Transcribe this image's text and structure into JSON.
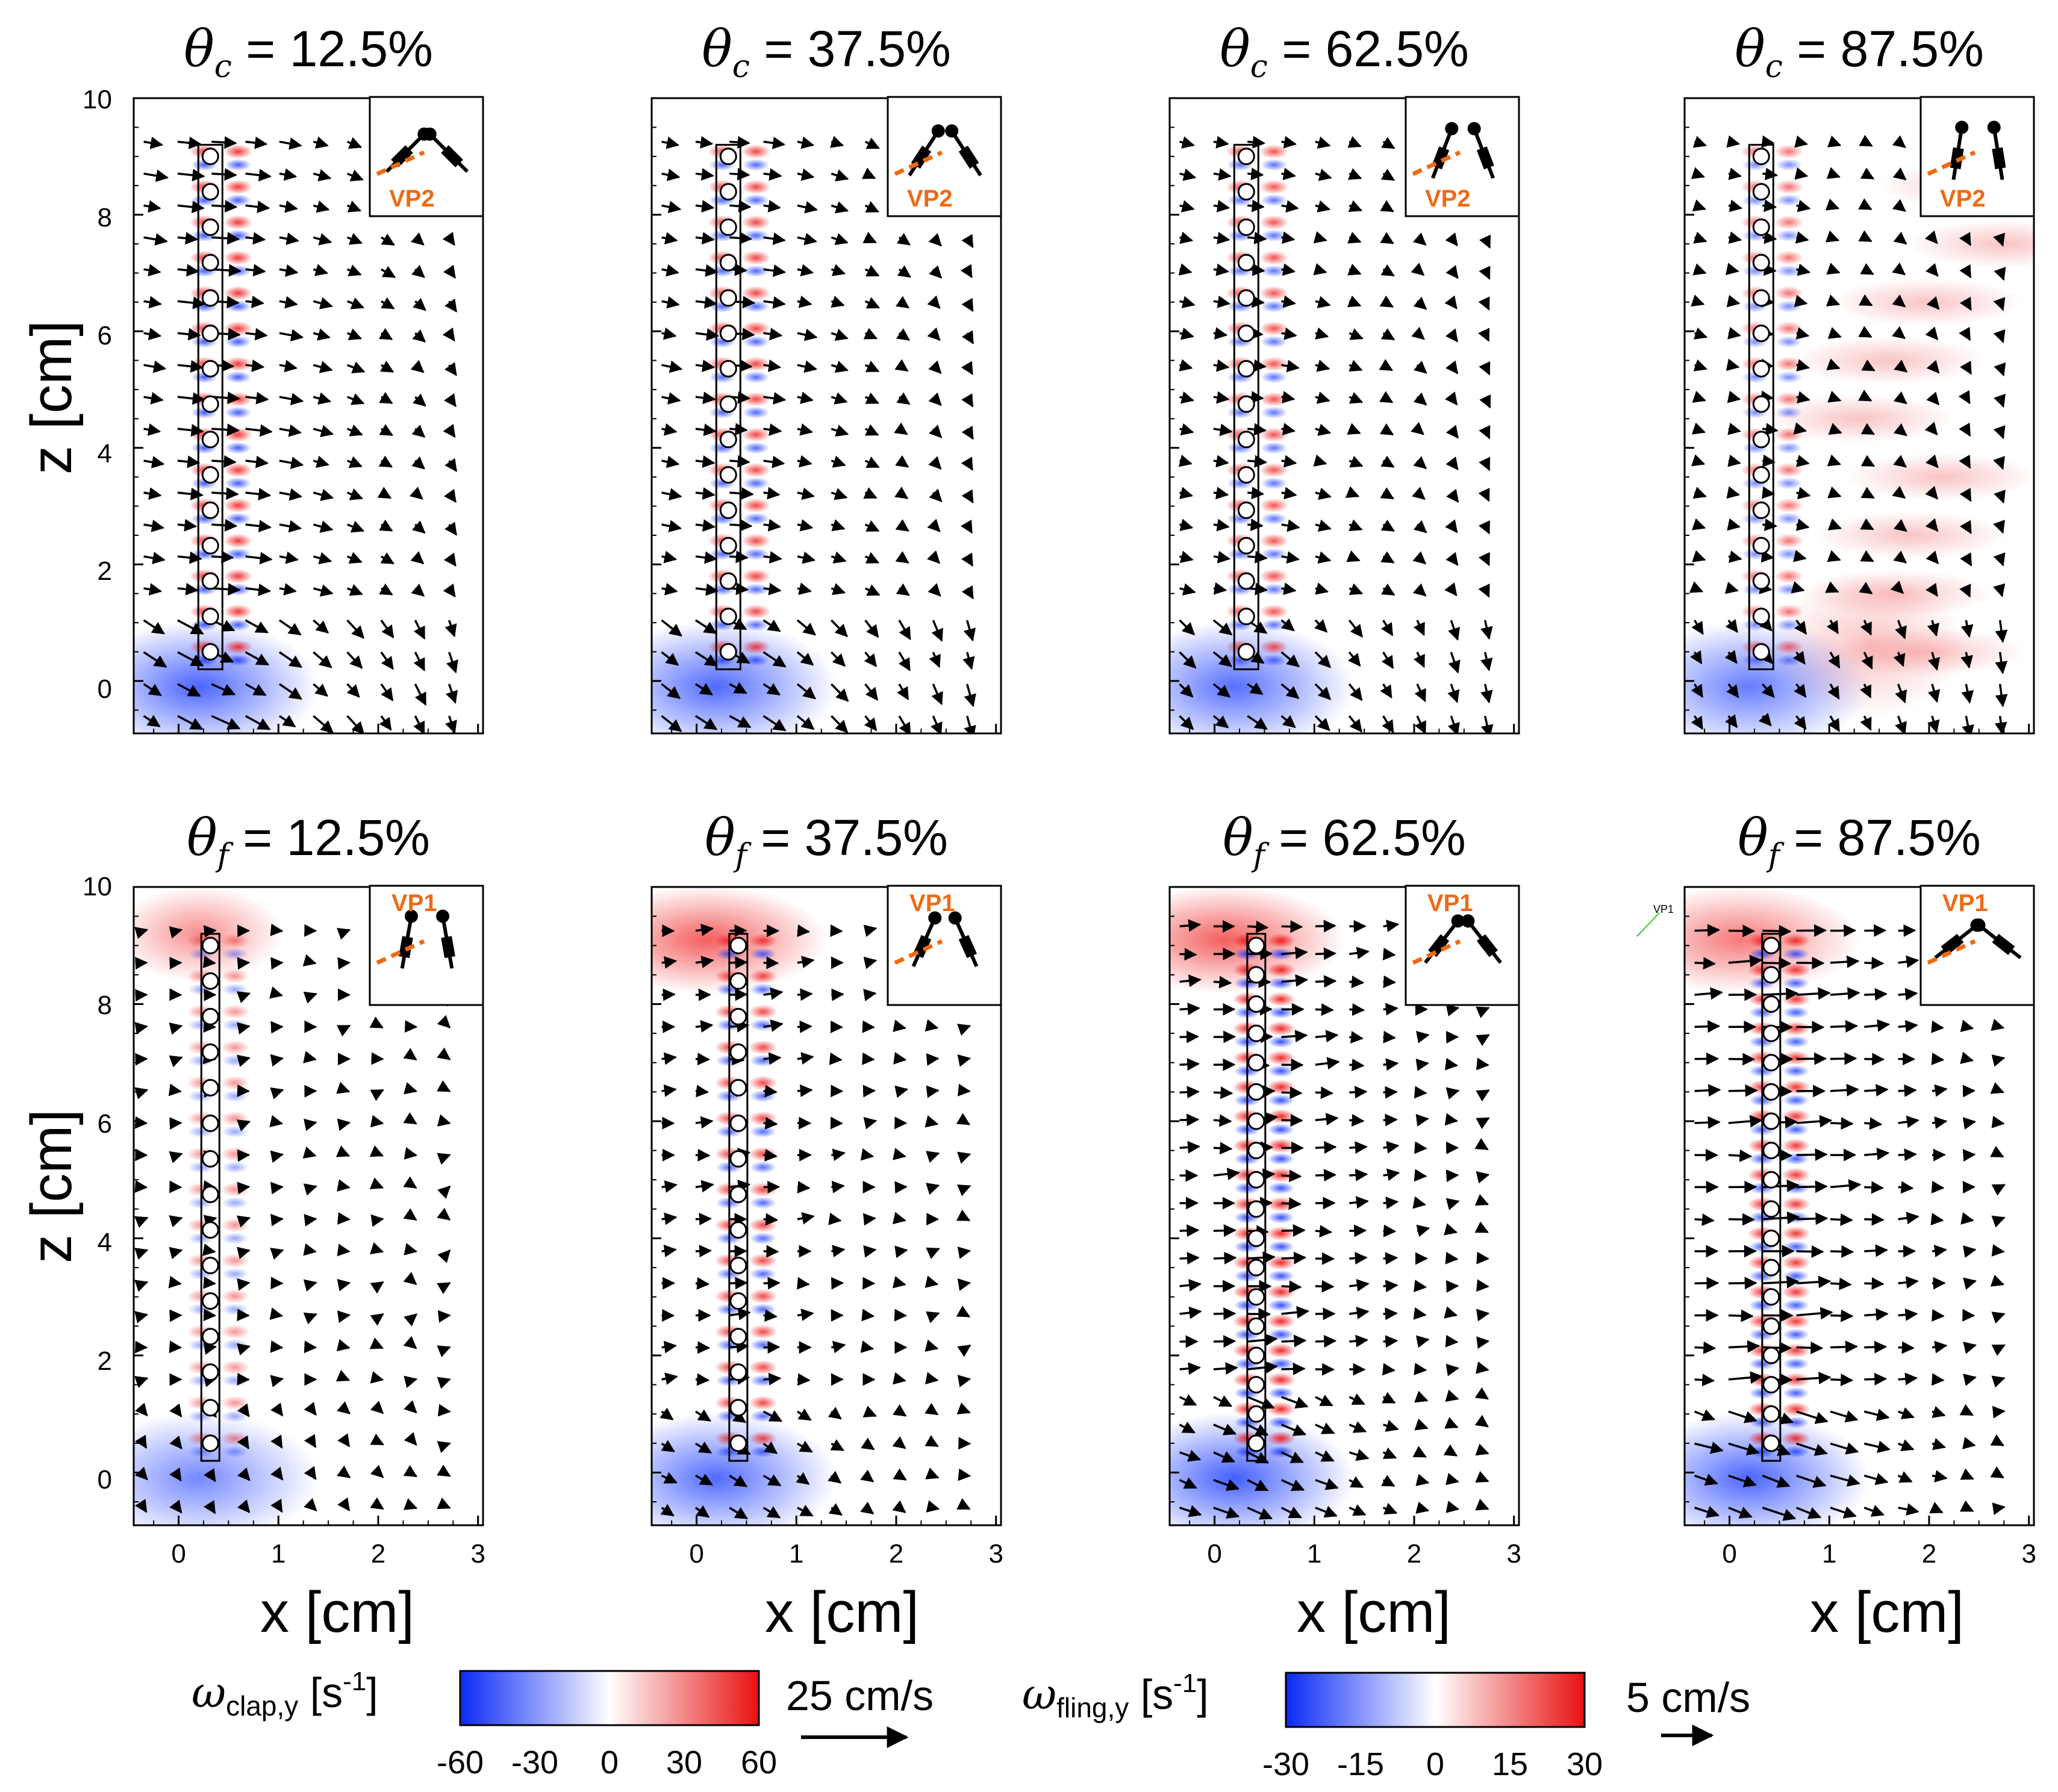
{
  "chart_data": {
    "type": "vector-field-contour",
    "layout": "2 rows x 4 columns",
    "colors": {
      "negative": "#1133ff",
      "positive": "#ee1111",
      "zero": "#ffffff",
      "vp_mark": "#ee6a14"
    },
    "axes": {
      "xlabel": "x [cm]",
      "zlabel": "z [cm]",
      "xlim": [
        -0.45,
        3.05
      ],
      "zlim": [
        -0.9,
        10.0
      ],
      "xticks": [
        "0",
        "1",
        "2",
        "3"
      ],
      "zticks": [
        "0",
        "2",
        "4",
        "6",
        "8",
        "10"
      ]
    },
    "rows": [
      {
        "name": "clap",
        "symbol": "θ",
        "subscript": "c",
        "viewpoint": "VP2",
        "vector_scale_label": "25 cm/s",
        "colorbar": {
          "symbol": "ω",
          "subscript": "clap,y",
          "unit": " [s",
          "unit_exp": "-1",
          "unit_end": "]",
          "ticks": [
            "-60",
            "-30",
            "0",
            "30",
            "60"
          ],
          "range": [
            -60,
            60
          ]
        },
        "panels": [
          {
            "value": "= 12.5%",
            "strip_x": 0.3,
            "bristles": 15,
            "speed_cm_s": 24,
            "bristle_vort": 50,
            "wake": 0.2
          },
          {
            "value": "= 37.5%",
            "strip_x": 0.3,
            "bristles": 15,
            "speed_cm_s": 22,
            "bristle_vort": 45,
            "wake": 0.3
          },
          {
            "value": "= 62.5%",
            "strip_x": 0.3,
            "bristles": 15,
            "speed_cm_s": 17,
            "bristle_vort": 40,
            "wake": 0.2
          },
          {
            "value": "= 87.5%",
            "strip_x": 0.3,
            "bristles": 15,
            "speed_cm_s": 13,
            "bristle_vort": 28,
            "wake": 0.5
          }
        ]
      },
      {
        "name": "fling",
        "symbol": "θ",
        "subscript": "f",
        "viewpoint": "VP1",
        "vector_scale_label": "5 cm/s",
        "colorbar": {
          "symbol": "ω",
          "subscript": "fling,y",
          "unit": " [s",
          "unit_exp": "-1",
          "unit_end": "]",
          "ticks": [
            "-30",
            "-15",
            "0",
            "15",
            "30"
          ],
          "range": [
            -30,
            30
          ]
        },
        "panels": [
          {
            "value": "= 12.5%",
            "strip_x": 0.3,
            "bristles": 15,
            "speed_cm_s": 2.5,
            "bristle_vort": 8,
            "wake": 0.1
          },
          {
            "value": "= 37.5%",
            "strip_x": 0.4,
            "bristles": 15,
            "speed_cm_s": 6,
            "bristle_vort": 22,
            "wake": 0.6
          },
          {
            "value": "= 62.5%",
            "strip_x": 0.4,
            "bristles": 18,
            "speed_cm_s": 9,
            "bristle_vort": 28,
            "wake": 0.6
          },
          {
            "value": "= 87.5%",
            "strip_x": 0.4,
            "bristles": 18,
            "speed_cm_s": 7,
            "bristle_vort": 25,
            "wake": 0.4
          }
        ]
      }
    ],
    "stray_annotation": "VP1"
  }
}
